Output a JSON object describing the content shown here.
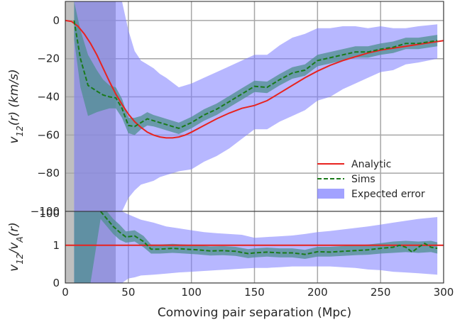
{
  "chart_data": [
    {
      "type": "line",
      "panel": "top",
      "xlabel": "",
      "ylabel": "v_12(r) (km/s)",
      "xlim": [
        0,
        300
      ],
      "ylim": [
        -100,
        10
      ],
      "xticks": [
        0,
        50,
        100,
        150,
        200,
        250,
        300
      ],
      "yticks": [
        0,
        -20,
        -40,
        -60,
        -80,
        -100
      ],
      "ytick_labels": [
        "0",
        "−20",
        "−40",
        "−60",
        "−80",
        "−100"
      ],
      "grid": true,
      "legend_position": "lower-right",
      "shaded_regions": [
        {
          "x": [
            0,
            7
          ],
          "color": "#bfbfbf"
        },
        {
          "x": [
            7,
            40
          ],
          "color": "#b3b3b3"
        }
      ],
      "series": [
        {
          "name": "Analytic",
          "style": "solid",
          "color": "#e8231f",
          "x": [
            0,
            5,
            10,
            15,
            20,
            25,
            30,
            35,
            40,
            45,
            50,
            55,
            60,
            65,
            70,
            75,
            80,
            85,
            90,
            95,
            100,
            110,
            120,
            130,
            140,
            150,
            160,
            170,
            180,
            190,
            200,
            210,
            220,
            230,
            240,
            250,
            260,
            270,
            280,
            290,
            300
          ],
          "y": [
            0,
            -0.5,
            -3,
            -7,
            -12,
            -18,
            -25,
            -32,
            -38.5,
            -44,
            -49,
            -53,
            -56,
            -58.5,
            -60,
            -61,
            -61.5,
            -61.5,
            -61,
            -60,
            -58.5,
            -55,
            -51.5,
            -48.5,
            -46,
            -44.5,
            -42,
            -38,
            -34,
            -30,
            -26.5,
            -23.5,
            -21,
            -19,
            -17,
            -15.5,
            -14.5,
            -13.5,
            -12.5,
            -11.5,
            -10.5
          ]
        },
        {
          "name": "Sims",
          "style": "dashed",
          "color": "#1a7a1a",
          "x": [
            7,
            12,
            18,
            25,
            30,
            35,
            40,
            45,
            50,
            55,
            60,
            65,
            70,
            75,
            80,
            90,
            100,
            110,
            120,
            130,
            140,
            150,
            160,
            170,
            180,
            190,
            200,
            210,
            220,
            230,
            240,
            250,
            260,
            270,
            280,
            295
          ],
          "y": [
            0,
            -20,
            -34,
            -37,
            -39,
            -40,
            -40.5,
            -46,
            -55,
            -55.5,
            -53.5,
            -51.5,
            -52.5,
            -53.5,
            -54.5,
            -56.5,
            -53.5,
            -49.5,
            -46.5,
            -42.5,
            -38.5,
            -34.5,
            -35,
            -31,
            -27.5,
            -26,
            -21,
            -19.5,
            -18,
            -16.5,
            -16.5,
            -15,
            -14,
            -12,
            -12,
            -10.5
          ]
        }
      ],
      "bands": [
        {
          "name": "Expected error",
          "color": "#7b7bff",
          "x": [
            7,
            12,
            18,
            25,
            30,
            35,
            40,
            45,
            50,
            55,
            60,
            65,
            70,
            75,
            80,
            90,
            100,
            110,
            120,
            130,
            140,
            150,
            160,
            170,
            180,
            190,
            200,
            210,
            220,
            230,
            240,
            250,
            260,
            270,
            280,
            295
          ],
          "lower": [
            -100,
            -100,
            -100,
            -100,
            -100,
            -100,
            -100,
            -100,
            -93,
            -89,
            -86,
            -85,
            -84,
            -82,
            -81,
            -79,
            -78,
            -74,
            -71,
            -67,
            -62,
            -57,
            -57,
            -53,
            -50,
            -47,
            -42,
            -40,
            -36,
            -33,
            -30,
            -27,
            -26,
            -23,
            -22,
            -20
          ],
          "upper": [
            10,
            10,
            10,
            10,
            10,
            10,
            10,
            10,
            -5,
            -16,
            -21,
            -23,
            -25,
            -28,
            -30,
            -35,
            -33,
            -30,
            -27,
            -24,
            -21,
            -18,
            -18,
            -13,
            -9,
            -7,
            -4,
            -4,
            -3,
            -3,
            -4,
            -3,
            -4,
            -4,
            -3,
            -2
          ]
        },
        {
          "name": "",
          "color": "#4f8f8f",
          "x": [
            7,
            12,
            18,
            25,
            30,
            35,
            40,
            45,
            50,
            55,
            60,
            65,
            70,
            75,
            80,
            90,
            100,
            110,
            120,
            130,
            140,
            150,
            160,
            170,
            180,
            190,
            200,
            210,
            220,
            230,
            240,
            250,
            260,
            270,
            280,
            295
          ],
          "lower": [
            -10,
            -35,
            -50,
            -48,
            -47,
            -46,
            -46,
            -51,
            -59,
            -60,
            -57,
            -55,
            -55.5,
            -56.5,
            -57.5,
            -59.5,
            -56.5,
            -52.5,
            -49.5,
            -45.5,
            -41.5,
            -37.5,
            -38,
            -34,
            -30.5,
            -29,
            -24,
            -22.5,
            -21,
            -19.5,
            -19.5,
            -18,
            -17,
            -15,
            -15,
            -13.5
          ],
          "upper": [
            10,
            -5,
            -18,
            -26,
            -31,
            -34,
            -35,
            -41,
            -51,
            -51,
            -50,
            -48,
            -49.5,
            -50.5,
            -51.5,
            -53.5,
            -50.5,
            -46.5,
            -43.5,
            -39.5,
            -35.5,
            -31.5,
            -32,
            -28,
            -24.5,
            -23,
            -18,
            -16.5,
            -15,
            -13.5,
            -13.5,
            -12,
            -11,
            -9,
            -9,
            -7.5
          ]
        }
      ],
      "legend": [
        {
          "label": "Analytic",
          "kind": "solid",
          "color": "#e8231f"
        },
        {
          "label": "Sims",
          "kind": "dashed",
          "color": "#1a7a1a"
        },
        {
          "label": "Expected error",
          "kind": "patch",
          "color": "#7b7bff"
        }
      ]
    },
    {
      "type": "line",
      "panel": "bottom",
      "xlabel": "Comoving pair separation (Mpc)",
      "ylabel": "v_12/v_A(r)",
      "xlim": [
        0,
        300
      ],
      "ylim": [
        0,
        1.9
      ],
      "xticks": [
        0,
        50,
        100,
        150,
        200,
        250,
        300
      ],
      "yticks": [
        0,
        1
      ],
      "ytick_labels": [
        "0",
        "1"
      ],
      "top_tick_label": "100",
      "grid": true,
      "shaded_regions": [
        {
          "x": [
            0,
            7
          ],
          "color": "#bfbfbf"
        },
        {
          "x": [
            7,
            40
          ],
          "color": "#b3b3b3"
        }
      ],
      "series": [
        {
          "name": "Analytic",
          "style": "solid",
          "color": "#e8231f",
          "x": [
            0,
            300
          ],
          "y": [
            1,
            1
          ]
        },
        {
          "name": "Sims",
          "style": "dashed",
          "color": "#1a7a1a",
          "x": [
            28,
            33,
            38,
            43,
            48,
            55,
            62,
            68,
            75,
            85,
            95,
            105,
            115,
            125,
            135,
            145,
            150,
            160,
            170,
            180,
            190,
            200,
            210,
            220,
            230,
            240,
            250,
            260,
            265,
            270,
            275,
            280,
            285,
            290,
            295
          ],
          "y": [
            1.9,
            1.7,
            1.5,
            1.35,
            1.22,
            1.25,
            1.1,
            0.9,
            0.9,
            0.92,
            0.9,
            0.88,
            0.85,
            0.86,
            0.84,
            0.78,
            0.8,
            0.82,
            0.8,
            0.8,
            0.76,
            0.83,
            0.82,
            0.84,
            0.86,
            0.88,
            0.92,
            0.95,
            1.0,
            0.95,
            0.82,
            0.95,
            1.05,
            0.95,
            0.92
          ]
        }
      ],
      "bands": [
        {
          "name": "Expected error",
          "color": "#7b7bff",
          "x": [
            7,
            20,
            30,
            40,
            45,
            50,
            55,
            60,
            70,
            80,
            90,
            100,
            110,
            120,
            130,
            140,
            150,
            160,
            170,
            180,
            190,
            200,
            210,
            220,
            230,
            240,
            250,
            260,
            270,
            280,
            295
          ],
          "lower": [
            0,
            0,
            0,
            0,
            0,
            0.12,
            0.15,
            0.2,
            0.22,
            0.25,
            0.28,
            0.3,
            0.32,
            0.34,
            0.36,
            0.38,
            0.4,
            0.4,
            0.42,
            0.44,
            0.44,
            0.44,
            0.44,
            0.42,
            0.4,
            0.36,
            0.34,
            0.3,
            0.28,
            0.26,
            0.22
          ],
          "upper": [
            1.9,
            1.9,
            1.9,
            1.9,
            1.9,
            1.82,
            1.75,
            1.68,
            1.6,
            1.5,
            1.45,
            1.4,
            1.35,
            1.32,
            1.3,
            1.28,
            1.2,
            1.22,
            1.24,
            1.26,
            1.3,
            1.35,
            1.38,
            1.42,
            1.46,
            1.5,
            1.55,
            1.6,
            1.65,
            1.7,
            1.75
          ]
        },
        {
          "name": "",
          "color": "#4f8f8f",
          "x": [
            7,
            20,
            28,
            33,
            38,
            43,
            48,
            55,
            62,
            68,
            75,
            85,
            95,
            105,
            115,
            125,
            135,
            145,
            150,
            160,
            170,
            180,
            190,
            200,
            210,
            220,
            230,
            240,
            250,
            260,
            270,
            280,
            290,
            295
          ],
          "lower": [
            0,
            0,
            1.7,
            1.5,
            1.3,
            1.15,
            1.07,
            1.1,
            0.95,
            0.78,
            0.78,
            0.8,
            0.78,
            0.76,
            0.73,
            0.74,
            0.72,
            0.66,
            0.68,
            0.7,
            0.68,
            0.68,
            0.64,
            0.7,
            0.7,
            0.72,
            0.74,
            0.75,
            0.78,
            0.8,
            0.82,
            0.8,
            0.82,
            0.78
          ],
          "upper": [
            1.9,
            1.9,
            1.9,
            1.9,
            1.7,
            1.55,
            1.37,
            1.4,
            1.25,
            1.02,
            1.02,
            1.04,
            1.02,
            1.0,
            0.97,
            0.98,
            0.96,
            0.9,
            0.92,
            0.94,
            0.92,
            0.92,
            0.88,
            0.96,
            0.96,
            0.98,
            1.0,
            1.02,
            1.06,
            1.1,
            1.12,
            1.1,
            1.12,
            1.08
          ]
        }
      ]
    }
  ]
}
